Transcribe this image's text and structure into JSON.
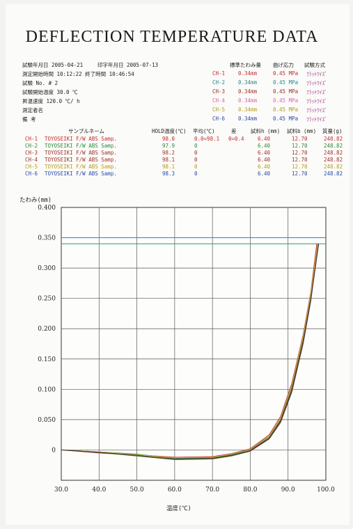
{
  "title": "DEFLECTION TEMPERATURE DATA",
  "meta": {
    "test_date": "試験年月日 2005-04-21",
    "print_date": "印字年月日 2005-07-13",
    "start_time": "測定開始時間 10:12:22 終了時間 10:46:54",
    "test_no": "試験 No. # 2",
    "start_temp": "試験開始温度 30.0 ℃",
    "rate": "昇温速度 120.0 ℃/ h",
    "operator": "測定者名",
    "remarks": "備 考"
  },
  "right_header": {
    "deflection": "標準たわみ量",
    "stress": "曲げ応力",
    "method": "試験方式"
  },
  "channels": [
    {
      "ch": "CH-1",
      "defl": "0.34mm",
      "stress": "0.45 MPa",
      "method": "ﾌﾗｯﾄﾜｲｽﾞ"
    },
    {
      "ch": "CH-2",
      "defl": "0.34mm",
      "stress": "0.45 MPa",
      "method": "ﾌﾗｯﾄﾜｲｽﾞ"
    },
    {
      "ch": "CH-3",
      "defl": "0.34mm",
      "stress": "0.45 MPa",
      "method": "ﾌﾗｯﾄﾜｲｽﾞ"
    },
    {
      "ch": "CH-4",
      "defl": "0.34mm",
      "stress": "0.45 MPa",
      "method": "ﾌﾗｯﾄﾜｲｽﾞ"
    },
    {
      "ch": "CH-5",
      "defl": "0.34mm",
      "stress": "0.45 MPa",
      "method": "ﾌﾗｯﾄﾜｲｽﾞ"
    },
    {
      "ch": "CH-6",
      "defl": "0.34mm",
      "stress": "0.45 MPa",
      "method": "ﾌﾗｯﾄﾜｲｽﾞ"
    }
  ],
  "table": {
    "headers": {
      "name": "サンプルネーム",
      "hold": "HOLD温度(℃)",
      "avg": "平均(℃)",
      "dev": "差",
      "h": "試料h (mm)",
      "b": "試料b (mm)",
      "mass": "質量(g)"
    },
    "rows": [
      {
        "ch": "CH-1",
        "name": "TOYOSEIKI F/W ABS Samp.",
        "hold": "98.0",
        "avg": "0.0=98.1",
        "dev": "0=0.4",
        "h": "6.40",
        "b": "12.70",
        "mass": "248.82"
      },
      {
        "ch": "CH-2",
        "name": "TOYOSEIKI F/W ABS Samp.",
        "hold": "97.9",
        "avg": "0",
        "dev": "",
        "h": "6.40",
        "b": "12.70",
        "mass": "248.82"
      },
      {
        "ch": "CH-3",
        "name": "TOYOSEIKI F/W ABS Samp.",
        "hold": "98.2",
        "avg": "0",
        "dev": "",
        "h": "6.40",
        "b": "12.70",
        "mass": "248.82"
      },
      {
        "ch": "CH-4",
        "name": "TOYOSEIKI F/W ABS Samp.",
        "hold": "98.1",
        "avg": "0",
        "dev": "",
        "h": "6.40",
        "b": "12.70",
        "mass": "248.82"
      },
      {
        "ch": "CH-5",
        "name": "TOYOSEIKI F/W ABS Samp.",
        "hold": "98.1",
        "avg": "0",
        "dev": "",
        "h": "6.40",
        "b": "12.70",
        "mass": "248.82"
      },
      {
        "ch": "CH-6",
        "name": "TOYOSEIKI F/W ABS Samp.",
        "hold": "98.3",
        "avg": "0",
        "dev": "",
        "h": "6.40",
        "b": "12.70",
        "mass": "248.82"
      }
    ]
  },
  "chart_data": {
    "type": "line",
    "ylabel": "たわみ(mm)",
    "xlabel": "温度(℃)",
    "xlim": [
      30.0,
      100.0
    ],
    "ylim": [
      -0.05,
      0.4
    ],
    "x_ticks": [
      "30.0",
      "40.0",
      "50.0",
      "60.0",
      "70.0",
      "80.0",
      "90.0",
      "100.0"
    ],
    "y_ticks": [
      "0.400",
      "0.350",
      "0.300",
      "0.250",
      "0.200",
      "0.150",
      "0.100",
      "0.050",
      "0"
    ],
    "reference_lines": [
      0.35,
      0.34
    ],
    "grid": true,
    "series": [
      {
        "color": "#c42d2d",
        "x": [
          30,
          40,
          50,
          60,
          70,
          75,
          80,
          85,
          88,
          91,
          94,
          96,
          97.6
        ],
        "y": [
          0,
          -0.004,
          -0.008,
          -0.012,
          -0.011,
          -0.006,
          0.002,
          0.025,
          0.055,
          0.11,
          0.19,
          0.26,
          0.34
        ]
      },
      {
        "color": "#2d8a3a",
        "x": [
          30,
          40,
          50,
          60,
          70,
          75,
          80,
          85,
          88,
          91,
          94,
          96,
          97.8
        ],
        "y": [
          0,
          -0.003,
          -0.007,
          -0.014,
          -0.013,
          -0.008,
          0.0,
          0.022,
          0.05,
          0.105,
          0.185,
          0.255,
          0.34
        ]
      },
      {
        "color": "#a0302a",
        "x": [
          30,
          40,
          50,
          60,
          70,
          75,
          80,
          85,
          88,
          91,
          94,
          96,
          97.9
        ],
        "y": [
          0,
          -0.005,
          -0.009,
          -0.015,
          -0.014,
          -0.009,
          -0.001,
          0.02,
          0.048,
          0.1,
          0.18,
          0.25,
          0.34
        ]
      },
      {
        "color": "#7a7a3a",
        "x": [
          30,
          40,
          50,
          60,
          70,
          75,
          80,
          85,
          88,
          91,
          94,
          96,
          98.0
        ],
        "y": [
          0,
          -0.004,
          -0.01,
          -0.016,
          -0.015,
          -0.01,
          -0.002,
          0.018,
          0.045,
          0.095,
          0.175,
          0.245,
          0.34
        ]
      },
      {
        "color": "#c8b44a",
        "x": [
          30,
          40,
          50,
          60,
          70,
          75,
          80,
          85,
          88,
          91,
          94,
          96,
          97.8
        ],
        "y": [
          0,
          -0.003,
          -0.008,
          -0.013,
          -0.012,
          -0.007,
          0.001,
          0.023,
          0.052,
          0.107,
          0.187,
          0.257,
          0.34
        ]
      },
      {
        "color": "#333333",
        "x": [
          30,
          40,
          50,
          60,
          70,
          75,
          80,
          85,
          88,
          91,
          94,
          96,
          98.1
        ],
        "y": [
          0,
          -0.004,
          -0.009,
          -0.015,
          -0.014,
          -0.009,
          -0.002,
          0.019,
          0.046,
          0.097,
          0.177,
          0.247,
          0.34
        ]
      }
    ]
  }
}
